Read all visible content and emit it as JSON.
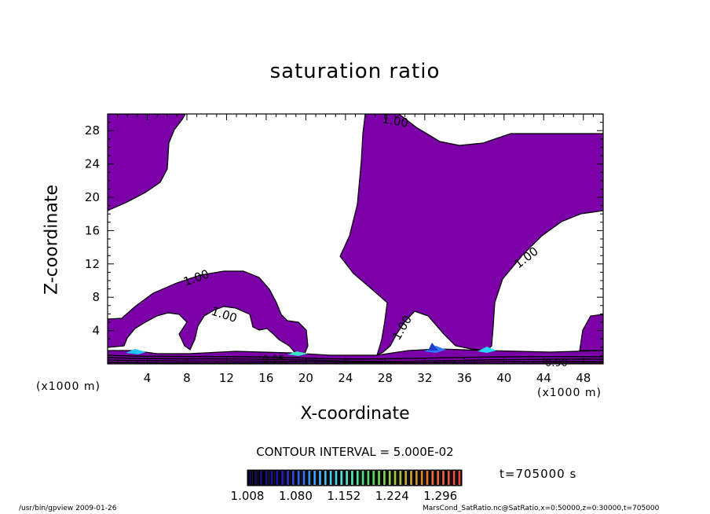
{
  "chart_data": {
    "type": "contour",
    "title": "saturation ratio",
    "xlabel": "X-coordinate",
    "ylabel": "Z-coordinate",
    "x_unit_left": "(x1000 m)",
    "x_unit_right": "(x1000 m)",
    "xlim": [
      0,
      50
    ],
    "ylim": [
      0,
      30
    ],
    "x_ticks": [
      4,
      8,
      12,
      16,
      20,
      24,
      28,
      32,
      36,
      40,
      44,
      48
    ],
    "y_ticks": [
      4,
      8,
      12,
      16,
      20,
      24,
      28
    ],
    "x_ticks_text": [
      "4",
      "8",
      "12",
      "16",
      "20",
      "24",
      "28",
      "32",
      "36",
      "40",
      "44",
      "48"
    ],
    "y_ticks_text": [
      "4",
      "8",
      "12",
      "16",
      "20",
      "24",
      "28"
    ],
    "contour_labels": [
      {
        "text": "1.00",
        "x": 29.6,
        "z": 29.4
      },
      {
        "text": "1.00",
        "x": 9.5,
        "z": 10.2
      },
      {
        "text": "1.00",
        "x": 11.7,
        "z": 6.0
      },
      {
        "text": "1.00",
        "x": 29.8,
        "z": 3.8
      },
      {
        "text": "1.00",
        "x": 42.0,
        "z": 12.4
      },
      {
        "text": "0.95",
        "x": 16.0,
        "z": 0.4
      },
      {
        "text": "0.90",
        "x": 45.0,
        "z": 0.0
      }
    ],
    "supersaturated_color": "#7b00a8",
    "contour_interval": "CONTOUR INTERVAL = 5.000E-02",
    "colorbar": {
      "ticks": [
        "1.008",
        "1.080",
        "1.152",
        "1.224",
        "1.296"
      ],
      "min": 1.008,
      "max": 1.296
    },
    "time_label": "t=705000 s"
  },
  "footer": {
    "left": "/usr/bin/gpview   2009-01-26",
    "right": "MarsCond_SatRatio.nc@SatRatio,x=0:50000,z=0:30000,t=705000"
  }
}
